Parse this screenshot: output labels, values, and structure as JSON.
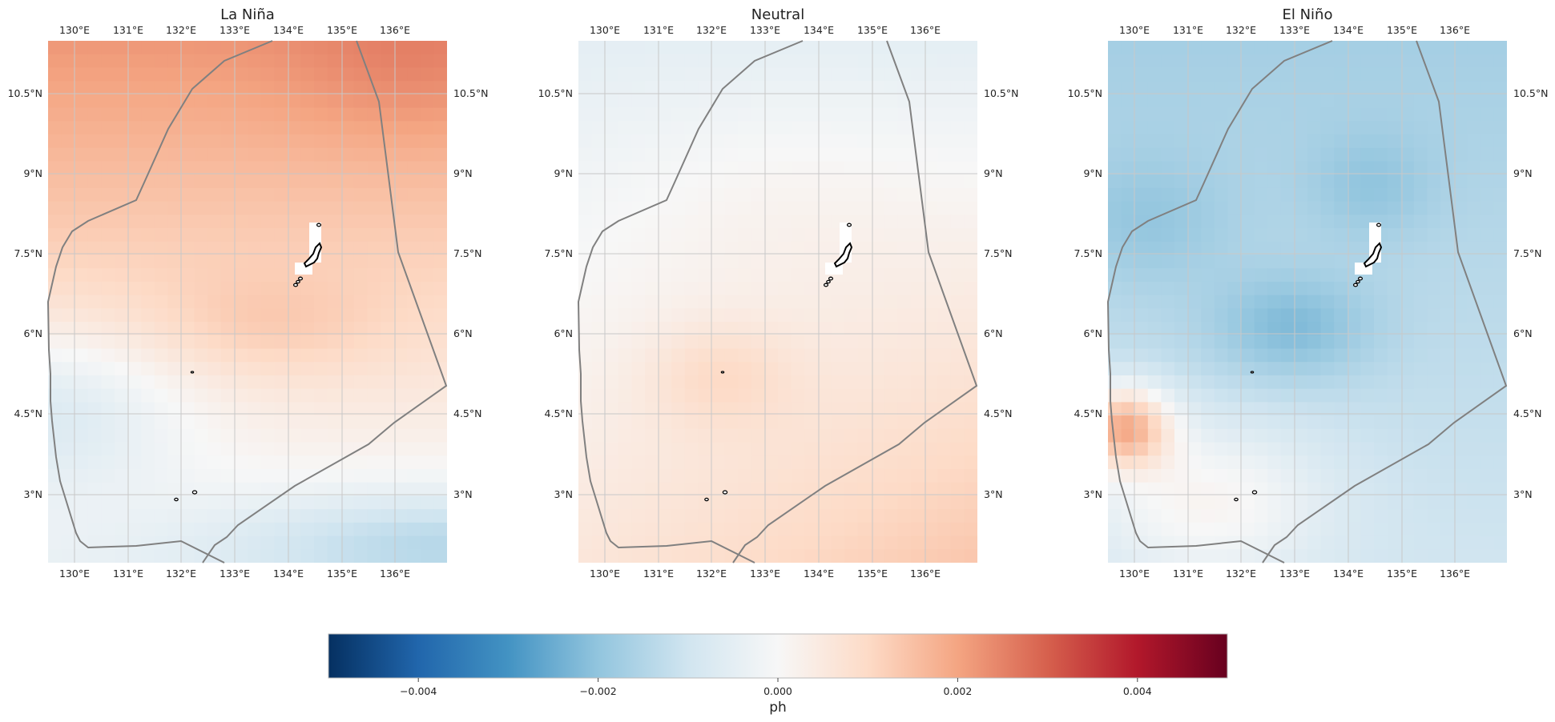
{
  "panels": [
    {
      "id": "la-nina",
      "title": "La Niña"
    },
    {
      "id": "neutral",
      "title": "Neutral"
    },
    {
      "id": "el-nino",
      "title": "El Niño"
    }
  ],
  "map": {
    "lon_ticks": [
      "130°E",
      "131°E",
      "132°E",
      "133°E",
      "134°E",
      "135°E",
      "136°E"
    ],
    "lat_ticks": [
      "10.5°N",
      "9°N",
      "7.5°N",
      "6°N",
      "4.5°N",
      "3°N"
    ],
    "lon_range": [
      129.5,
      137.0
    ],
    "lat_range": [
      1.8,
      11.5
    ],
    "eez_color": "#808080",
    "grid_color": "#c8c8c8"
  },
  "colorbar": {
    "label": "ph",
    "vmin": -0.005,
    "vmax": 0.005,
    "ticks": [
      "−0.004",
      "−0.002",
      "0.000",
      "0.002",
      "0.004"
    ],
    "colormap": "RdBu_r"
  }
}
